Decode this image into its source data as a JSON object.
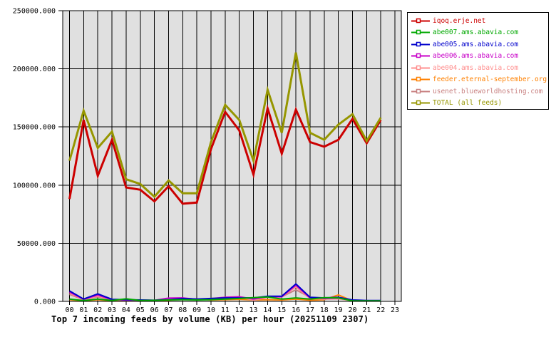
{
  "title": "Top 7 incoming feeds by volume (KB) per hour (20251109 2307)",
  "colors": {
    "background": "#ffffff",
    "plot_background": "#e0e0e0",
    "grid": "#000000",
    "axis_text": "#000000"
  },
  "legend": {
    "items": [
      {
        "label": "iqoq.erje.net",
        "color": "#cc0000"
      },
      {
        "label": "abe007.ams.abavia.com",
        "color": "#00a800"
      },
      {
        "label": "abe005.ams.abavia.com",
        "color": "#0000cc"
      },
      {
        "label": "abe006.ams.abavia.com",
        "color": "#c800c8"
      },
      {
        "label": "abe004.ams.abavia.com",
        "color": "#ff8f8f"
      },
      {
        "label": "feeder.eternal-september.org",
        "color": "#ff8000"
      },
      {
        "label": "usenet.blueworldhosting.com",
        "color": "#c88080"
      },
      {
        "label": "TOTAL (all feeds)",
        "color": "#969600"
      }
    ]
  },
  "chart_data": {
    "type": "line",
    "title": "Top 7 incoming feeds by volume (KB) per hour (20251109 2307)",
    "xlabel": "",
    "ylabel": "",
    "grid": true,
    "legend_position": "outside-right",
    "ylim": [
      0,
      250000
    ],
    "y_tick_values": [
      0,
      50000,
      100000,
      150000,
      200000,
      250000
    ],
    "y_tick_labels": [
      "0.000",
      "50000.000",
      "100000.000",
      "150000.000",
      "200000.000",
      "250000.000"
    ],
    "x_tick_labels": [
      "00",
      "01",
      "02",
      "03",
      "04",
      "05",
      "06",
      "07",
      "08",
      "09",
      "10",
      "11",
      "12",
      "13",
      "14",
      "15",
      "16",
      "17",
      "18",
      "19",
      "20",
      "21",
      "22",
      "23"
    ],
    "note": "data series cover hours 00 through 22; hour 23 has no data",
    "series": [
      {
        "name": "iqoq.erje.net",
        "color": "#cc0000",
        "width": 3,
        "values": [
          88000,
          156000,
          108000,
          139000,
          98000,
          96000,
          86000,
          99000,
          84000,
          85000,
          131000,
          163000,
          147000,
          109000,
          166000,
          127000,
          165000,
          137000,
          133000,
          139000,
          157000,
          136000,
          156000
        ]
      },
      {
        "name": "abe007.ams.abavia.com",
        "color": "#00a800",
        "width": 2,
        "values": [
          2000,
          700,
          2000,
          800,
          2200,
          800,
          900,
          1200,
          1500,
          1200,
          1500,
          2000,
          2500,
          3200,
          3800,
          2000,
          3000,
          2000,
          3200,
          3000,
          500,
          400,
          400
        ]
      },
      {
        "name": "abe005.ams.abavia.com",
        "color": "#0000cc",
        "width": 2,
        "values": [
          9000,
          2000,
          6500,
          1800,
          1500,
          1200,
          1000,
          1500,
          2500,
          2000,
          2500,
          3000,
          3000,
          3000,
          4500,
          4500,
          15000,
          3500,
          3000,
          3500,
          1200,
          800,
          800
        ]
      },
      {
        "name": "abe006.ams.abavia.com",
        "color": "#c800c8",
        "width": 2,
        "values": [
          8000,
          1800,
          5500,
          1500,
          1200,
          1000,
          900,
          2800,
          3000,
          1800,
          2200,
          3500,
          4000,
          2000,
          4000,
          4000,
          14000,
          3000,
          2500,
          2800,
          900,
          600,
          600
        ]
      },
      {
        "name": "abe004.ams.abavia.com",
        "color": "#ff8f8f",
        "width": 2,
        "values": [
          7000,
          1500,
          4500,
          1200,
          1000,
          900,
          800,
          1500,
          2000,
          1500,
          2000,
          2500,
          4000,
          1000,
          3500,
          3800,
          12500,
          2500,
          2000,
          2200,
          700,
          500,
          500
        ]
      },
      {
        "name": "feeder.eternal-september.org",
        "color": "#ff8000",
        "width": 2,
        "values": [
          1500,
          500,
          1500,
          500,
          600,
          500,
          500,
          900,
          2500,
          2000,
          1200,
          1500,
          1800,
          1200,
          1500,
          1200,
          2000,
          1000,
          1500,
          5500,
          400,
          300,
          300
        ]
      },
      {
        "name": "usenet.blueworldhosting.com",
        "color": "#c88080",
        "width": 2,
        "values": [
          6000,
          1500,
          4000,
          1200,
          1000,
          1100,
          900,
          1100,
          1500,
          1500,
          2500,
          3500,
          3000,
          3000,
          4000,
          4000,
          10000,
          3500,
          2500,
          3000,
          1000,
          400,
          400
        ]
      },
      {
        "name": "TOTAL (all feeds)",
        "color": "#969600",
        "width": 3,
        "values": [
          121000,
          164000,
          132000,
          146000,
          105000,
          101000,
          90000,
          104000,
          93000,
          93000,
          137000,
          169000,
          156000,
          121000,
          182000,
          145000,
          214000,
          145000,
          139000,
          152000,
          161000,
          138000,
          158000
        ]
      }
    ]
  }
}
